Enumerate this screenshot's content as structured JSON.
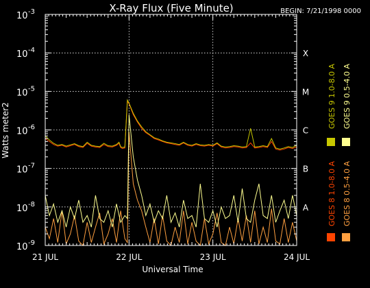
{
  "chart_data": {
    "type": "line",
    "title": "X-Ray Flux (Five Minute)",
    "begin_label": "BEGIN: 7/21/1998 0000",
    "xlabel": "Universal Time",
    "ylabel": "Watts meter2",
    "y_scale": "log",
    "ylim": [
      1e-09,
      0.001
    ],
    "y_ticks": [
      {
        "value": 1e-09,
        "label": "10",
        "exp": "-9"
      },
      {
        "value": 1e-08,
        "label": "10",
        "exp": "-8"
      },
      {
        "value": 1e-07,
        "label": "10",
        "exp": "-7"
      },
      {
        "value": 1e-06,
        "label": "10",
        "exp": "-6"
      },
      {
        "value": 1e-05,
        "label": "10",
        "exp": "-5"
      },
      {
        "value": 0.0001,
        "label": "10",
        "exp": "-4"
      },
      {
        "value": 0.001,
        "label": "10",
        "exp": "-3"
      }
    ],
    "xlim": [
      "1998-07-21 00:00",
      "1998-07-24 00:00"
    ],
    "x_ticks": [
      "21 JUL",
      "22 JUL",
      "23 JUL",
      "24 JUL"
    ],
    "flare_classes": [
      {
        "label": "X",
        "value": 0.0001
      },
      {
        "label": "M",
        "value": 1e-05
      },
      {
        "label": "C",
        "value": 1e-06
      },
      {
        "label": "B",
        "value": 1e-07
      },
      {
        "label": "A",
        "value": 1e-08
      }
    ],
    "grid": true,
    "legend_position": "right",
    "legend": [
      {
        "name": "GOES 8 1.0-8.0 A",
        "color": "#ff4400"
      },
      {
        "name": "GOES 8 0.5-4.0 A",
        "color": "#ffa040"
      },
      {
        "name": "GOES 9 1.0-8.0 A",
        "color": "#c8c800"
      },
      {
        "name": "GOES 9 0.5-4.0 A",
        "color": "#ffff90"
      }
    ],
    "series": [
      {
        "color": "#ff4400",
        "x": [
          0,
          0.05,
          0.1,
          0.15,
          0.2,
          0.25,
          0.3,
          0.35,
          0.4,
          0.45,
          0.5,
          0.55,
          0.6,
          0.65,
          0.7,
          0.75,
          0.8,
          0.85,
          0.88,
          0.9,
          0.92,
          0.95,
          0.98,
          1.0,
          1.05,
          1.1,
          1.15,
          1.2,
          1.25,
          1.3,
          1.35,
          1.4,
          1.45,
          1.5,
          1.55,
          1.6,
          1.65,
          1.7,
          1.75,
          1.8,
          1.85,
          1.9,
          1.95,
          2.0,
          2.05,
          2.1,
          2.15,
          2.2,
          2.25,
          2.3,
          2.35,
          2.4,
          2.45,
          2.5,
          2.55,
          2.6,
          2.65,
          2.7,
          2.75,
          2.8,
          2.85,
          2.9,
          2.95,
          3.0
        ],
        "y": [
          6e-07,
          5e-07,
          4.2e-07,
          3.8e-07,
          4e-07,
          3.6e-07,
          3.9e-07,
          4.2e-07,
          3.7e-07,
          3.5e-07,
          4.5e-07,
          3.8e-07,
          3.6e-07,
          3.5e-07,
          4.2e-07,
          3.7e-07,
          3.6e-07,
          4e-07,
          4.5e-07,
          3.5e-07,
          3.3e-07,
          3.4e-07,
          5.5e-06,
          4.8e-06,
          2.5e-06,
          1.6e-06,
          1.1e-06,
          8.5e-07,
          7.2e-07,
          6e-07,
          5.5e-07,
          5e-07,
          4.6e-07,
          4.4e-07,
          4.2e-07,
          4e-07,
          4.6e-07,
          4e-07,
          3.8e-07,
          4.2e-07,
          3.9e-07,
          3.8e-07,
          4e-07,
          3.8e-07,
          4.4e-07,
          3.6e-07,
          3.4e-07,
          3.5e-07,
          3.7e-07,
          3.6e-07,
          3.4e-07,
          3.5e-07,
          4.6e-07,
          3.4e-07,
          3.5e-07,
          3.7e-07,
          3.5e-07,
          5e-07,
          3.2e-07,
          3e-07,
          3.2e-07,
          3.5e-07,
          3.3e-07,
          3.6e-07
        ]
      },
      {
        "color": "#ffa040",
        "x": [
          0,
          0.05,
          0.1,
          0.15,
          0.2,
          0.25,
          0.3,
          0.35,
          0.4,
          0.45,
          0.5,
          0.55,
          0.6,
          0.65,
          0.7,
          0.75,
          0.8,
          0.85,
          0.9,
          0.95,
          0.98,
          1.0,
          1.05,
          1.1,
          1.15,
          1.2,
          1.25,
          1.3,
          1.35,
          1.4,
          1.45,
          1.5,
          1.55,
          1.6,
          1.65,
          1.7,
          1.75,
          1.8,
          1.85,
          1.9,
          1.95,
          2.0,
          2.05,
          2.1,
          2.15,
          2.2,
          2.25,
          2.3,
          2.35,
          2.4,
          2.45,
          2.5,
          2.55,
          2.6,
          2.65,
          2.7,
          2.75,
          2.8,
          2.85,
          2.9,
          2.95,
          3.0
        ],
        "y": [
          3e-09,
          1.5e-09,
          5e-09,
          1.2e-09,
          8e-09,
          1.1e-09,
          2e-09,
          6e-09,
          1.3e-09,
          1e-09,
          4e-09,
          1.2e-09,
          3e-09,
          7e-09,
          1.1e-09,
          2e-09,
          5e-09,
          1.2e-09,
          8e-09,
          1.5e-09,
          1.2e-09,
          9e-07,
          4e-08,
          1.5e-08,
          8e-09,
          3e-09,
          1.2e-09,
          5e-09,
          1.1e-09,
          6e-09,
          1.3e-09,
          1e-09,
          3e-09,
          1.2e-09,
          8e-09,
          1.1e-09,
          4e-09,
          1.3e-09,
          1e-09,
          5e-09,
          1.1e-09,
          2e-09,
          7e-09,
          1.2e-09,
          1e-09,
          3e-09,
          1.1e-09,
          5e-09,
          1.3e-09,
          6e-09,
          1.2e-09,
          8e-09,
          1.1e-09,
          3e-09,
          1.2e-09,
          9e-09,
          1.3e-09,
          1.1e-09,
          5e-09,
          1.2e-09,
          4e-09,
          1.3e-09
        ]
      },
      {
        "color": "#c8c800",
        "x": [
          0,
          0.05,
          0.1,
          0.15,
          0.2,
          0.25,
          0.3,
          0.35,
          0.4,
          0.45,
          0.5,
          0.55,
          0.6,
          0.65,
          0.7,
          0.75,
          0.8,
          0.85,
          0.88,
          0.9,
          0.92,
          0.95,
          0.98,
          1.0,
          1.05,
          1.1,
          1.15,
          1.2,
          1.25,
          1.3,
          1.35,
          1.4,
          1.45,
          1.5,
          1.55,
          1.6,
          1.65,
          1.7,
          1.75,
          1.8,
          1.85,
          1.9,
          1.95,
          2.0,
          2.05,
          2.1,
          2.15,
          2.2,
          2.25,
          2.3,
          2.35,
          2.4,
          2.45,
          2.5,
          2.55,
          2.6,
          2.65,
          2.7,
          2.75,
          2.8,
          2.85,
          2.9,
          2.95,
          3.0
        ],
        "y": [
          7e-07,
          5.5e-07,
          4.5e-07,
          4e-07,
          4.2e-07,
          3.8e-07,
          4.1e-07,
          4.4e-07,
          3.9e-07,
          3.7e-07,
          4.8e-07,
          4e-07,
          3.8e-07,
          3.7e-07,
          4.5e-07,
          3.9e-07,
          3.8e-07,
          4.2e-07,
          4.8e-07,
          3.7e-07,
          3.5e-07,
          3.6e-07,
          6e-06,
          5e-06,
          2.7e-06,
          1.7e-06,
          1.2e-06,
          9e-07,
          7.5e-07,
          6.3e-07,
          5.8e-07,
          5.2e-07,
          4.8e-07,
          4.6e-07,
          4.4e-07,
          4.2e-07,
          4.8e-07,
          4.2e-07,
          4e-07,
          4.4e-07,
          4.1e-07,
          4e-07,
          4.2e-07,
          4e-07,
          4.6e-07,
          3.8e-07,
          3.6e-07,
          3.7e-07,
          3.9e-07,
          3.8e-07,
          3.6e-07,
          3.7e-07,
          1.1e-06,
          3.6e-07,
          3.7e-07,
          3.9e-07,
          3.7e-07,
          6e-07,
          3.4e-07,
          3.2e-07,
          3.4e-07,
          3.7e-07,
          3.5e-07,
          4e-07
        ]
      },
      {
        "color": "#ffff90",
        "x": [
          0,
          0.05,
          0.1,
          0.15,
          0.2,
          0.25,
          0.3,
          0.35,
          0.4,
          0.45,
          0.5,
          0.55,
          0.6,
          0.65,
          0.7,
          0.75,
          0.8,
          0.85,
          0.9,
          0.95,
          0.98,
          1.0,
          1.05,
          1.1,
          1.15,
          1.2,
          1.25,
          1.3,
          1.35,
          1.4,
          1.45,
          1.5,
          1.55,
          1.6,
          1.65,
          1.7,
          1.75,
          1.8,
          1.85,
          1.9,
          1.95,
          2.0,
          2.05,
          2.1,
          2.15,
          2.2,
          2.25,
          2.3,
          2.35,
          2.4,
          2.45,
          2.5,
          2.55,
          2.6,
          2.65,
          2.7,
          2.75,
          2.8,
          2.85,
          2.9,
          2.95,
          3.0
        ],
        "y": [
          2e-08,
          6e-09,
          1.2e-08,
          4e-09,
          8e-09,
          3e-09,
          1e-08,
          5e-09,
          1.5e-08,
          4e-09,
          6e-09,
          3e-09,
          2e-08,
          5e-09,
          4e-09,
          8e-09,
          3e-09,
          1.2e-08,
          4e-09,
          6e-09,
          5e-09,
          2.5e-06,
          2e-07,
          5e-08,
          2e-08,
          6e-09,
          1.2e-08,
          4e-09,
          8e-09,
          5e-09,
          2e-08,
          4e-09,
          7e-09,
          3e-09,
          1.5e-08,
          5e-09,
          6e-09,
          3e-09,
          4e-08,
          5e-09,
          4e-09,
          8e-09,
          3e-09,
          1e-08,
          5e-09,
          6e-09,
          2e-08,
          4e-09,
          3e-08,
          5e-09,
          4e-09,
          1.5e-08,
          4e-08,
          6e-09,
          5e-09,
          2e-08,
          4e-09,
          8e-09,
          1.5e-08,
          5e-09,
          2e-08,
          6e-09
        ]
      }
    ]
  }
}
